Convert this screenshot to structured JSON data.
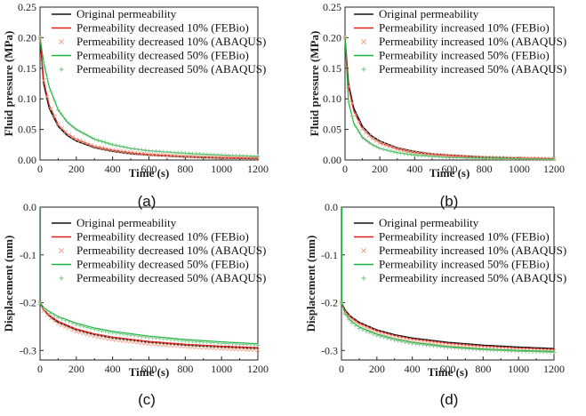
{
  "colors": {
    "original": "#111111",
    "fe10": "#e0201b",
    "ab10": "#f0a08a",
    "fe50": "#1fae3c",
    "ab50": "#6cc77d"
  },
  "chart_data": [
    {
      "type": "line",
      "panel_label": "(a)",
      "xlabel": "Time (s)",
      "ylabel": "Fluid pressure (MPa)",
      "xlim": [
        0,
        1200
      ],
      "ylim": [
        0,
        0.25
      ],
      "xticks": [
        0,
        200,
        400,
        600,
        800,
        1000,
        1200
      ],
      "yticks": [
        0.0,
        0.05,
        0.1,
        0.15,
        0.2,
        0.25
      ],
      "ytick_labels": [
        "0.00",
        "0.05",
        "0.10",
        "0.15",
        "0.20",
        "0.25"
      ],
      "x": [
        0,
        20,
        50,
        100,
        150,
        200,
        300,
        400,
        500,
        600,
        800,
        1000,
        1200
      ],
      "series": [
        {
          "name": "Original permeability",
          "key": "original",
          "style": "line",
          "values": [
            0.2,
            0.125,
            0.085,
            0.055,
            0.04,
            0.031,
            0.02,
            0.014,
            0.01,
            0.008,
            0.005,
            0.003,
            0.002
          ]
        },
        {
          "name": "Permeability decreased 10% (FEBio)",
          "key": "fe10",
          "style": "line",
          "values": [
            0.2,
            0.13,
            0.09,
            0.058,
            0.043,
            0.034,
            0.022,
            0.016,
            0.012,
            0.009,
            0.006,
            0.004,
            0.003
          ]
        },
        {
          "name": "Permeability decreased 10% (ABAQUS)",
          "key": "ab10",
          "style": "x",
          "values": [
            0.2,
            0.13,
            0.09,
            0.058,
            0.043,
            0.034,
            0.022,
            0.016,
            0.012,
            0.009,
            0.006,
            0.004,
            0.003
          ]
        },
        {
          "name": "Permeability decreased 50% (FEBio)",
          "key": "fe50",
          "style": "line",
          "values": [
            0.2,
            0.16,
            0.12,
            0.082,
            0.062,
            0.05,
            0.034,
            0.025,
            0.019,
            0.015,
            0.011,
            0.008,
            0.006
          ]
        },
        {
          "name": "Permeability decreased 50% (ABAQUS)",
          "key": "ab50",
          "style": "plus",
          "values": [
            0.2,
            0.16,
            0.12,
            0.082,
            0.062,
            0.05,
            0.034,
            0.025,
            0.019,
            0.015,
            0.011,
            0.008,
            0.006
          ]
        }
      ]
    },
    {
      "type": "line",
      "panel_label": "(b)",
      "xlabel": "Time (s)",
      "ylabel": "Fluid pressure (MPa)",
      "xlim": [
        0,
        1200
      ],
      "ylim": [
        0,
        0.25
      ],
      "xticks": [
        0,
        200,
        400,
        600,
        800,
        1000,
        1200
      ],
      "yticks": [
        0.0,
        0.05,
        0.1,
        0.15,
        0.2,
        0.25
      ],
      "ytick_labels": [
        "0.00",
        "0.05",
        "0.10",
        "0.15",
        "0.20",
        "0.25"
      ],
      "x": [
        0,
        20,
        50,
        100,
        150,
        200,
        300,
        400,
        500,
        600,
        800,
        1000,
        1200
      ],
      "series": [
        {
          "name": "Original permeability",
          "key": "original",
          "style": "line",
          "values": [
            0.2,
            0.125,
            0.085,
            0.055,
            0.04,
            0.031,
            0.02,
            0.014,
            0.01,
            0.008,
            0.005,
            0.003,
            0.002
          ]
        },
        {
          "name": "Permeability increased 10% (FEBio)",
          "key": "fe10",
          "style": "line",
          "values": [
            0.2,
            0.12,
            0.08,
            0.051,
            0.037,
            0.028,
            0.018,
            0.012,
            0.009,
            0.007,
            0.004,
            0.003,
            0.002
          ]
        },
        {
          "name": "Permeability increased 10% (ABAQUS)",
          "key": "ab10",
          "style": "x",
          "values": [
            0.2,
            0.12,
            0.08,
            0.051,
            0.037,
            0.028,
            0.018,
            0.012,
            0.009,
            0.007,
            0.004,
            0.003,
            0.002
          ]
        },
        {
          "name": "Permeability increased 50% (FEBio)",
          "key": "fe50",
          "style": "line",
          "values": [
            0.2,
            0.095,
            0.06,
            0.037,
            0.026,
            0.019,
            0.012,
            0.008,
            0.006,
            0.004,
            0.003,
            0.002,
            0.001
          ]
        },
        {
          "name": "Permeability increased 50% (ABAQUS)",
          "key": "ab50",
          "style": "plus",
          "values": [
            0.2,
            0.095,
            0.06,
            0.037,
            0.026,
            0.019,
            0.012,
            0.008,
            0.006,
            0.004,
            0.003,
            0.002,
            0.001
          ]
        }
      ]
    },
    {
      "type": "line",
      "panel_label": "(c)",
      "xlabel": "Time (s)",
      "ylabel": "Displacement (mm)",
      "xlim": [
        0,
        1200
      ],
      "ylim": [
        -0.32,
        0.0
      ],
      "xticks": [
        0,
        200,
        400,
        600,
        800,
        1000,
        1200
      ],
      "yticks": [
        -0.3,
        -0.2,
        -0.1,
        0.0
      ],
      "ytick_labels": [
        "-0.3",
        "-0.2",
        "-0.1",
        "0.0"
      ],
      "x": [
        0,
        20,
        50,
        100,
        200,
        300,
        400,
        600,
        800,
        1000,
        1200
      ],
      "series": [
        {
          "name": "Original permeability",
          "key": "original",
          "style": "line",
          "values": [
            -0.2,
            -0.215,
            -0.228,
            -0.241,
            -0.257,
            -0.267,
            -0.274,
            -0.283,
            -0.289,
            -0.293,
            -0.296
          ]
        },
        {
          "name": "Permeability decreased 10% (FEBio)",
          "key": "fe10",
          "style": "line",
          "values": [
            -0.2,
            -0.214,
            -0.226,
            -0.239,
            -0.255,
            -0.265,
            -0.272,
            -0.281,
            -0.287,
            -0.291,
            -0.294
          ]
        },
        {
          "name": "Permeability decreased 10% (ABAQUS)",
          "key": "ab10",
          "style": "x",
          "values": [
            -0.2,
            -0.217,
            -0.23,
            -0.244,
            -0.26,
            -0.27,
            -0.277,
            -0.286,
            -0.292,
            -0.296,
            -0.299
          ]
        },
        {
          "name": "Permeability decreased 50% (FEBio)",
          "key": "fe50",
          "style": "line",
          "values": [
            -0.2,
            -0.21,
            -0.218,
            -0.229,
            -0.243,
            -0.253,
            -0.26,
            -0.27,
            -0.277,
            -0.282,
            -0.286
          ]
        },
        {
          "name": "Permeability decreased 50% (ABAQUS)",
          "key": "ab50",
          "style": "plus",
          "values": [
            -0.2,
            -0.211,
            -0.22,
            -0.231,
            -0.246,
            -0.256,
            -0.263,
            -0.273,
            -0.28,
            -0.285,
            -0.289
          ]
        }
      ]
    },
    {
      "type": "line",
      "panel_label": "(d)",
      "xlabel": "Time (s)",
      "ylabel": "Displacement (mm)",
      "xlim": [
        0,
        1200
      ],
      "ylim": [
        -0.32,
        0.0
      ],
      "xticks": [
        0,
        200,
        400,
        600,
        800,
        1000,
        1200
      ],
      "yticks": [
        -0.3,
        -0.2,
        -0.1,
        0.0
      ],
      "ytick_labels": [
        "-0.3",
        "-0.2",
        "-0.1",
        "0.0"
      ],
      "x": [
        0,
        20,
        50,
        100,
        200,
        300,
        400,
        600,
        800,
        1000,
        1200
      ],
      "series": [
        {
          "name": "Original permeability",
          "key": "original",
          "style": "line",
          "values": [
            -0.2,
            -0.215,
            -0.228,
            -0.241,
            -0.257,
            -0.267,
            -0.274,
            -0.283,
            -0.289,
            -0.293,
            -0.296
          ]
        },
        {
          "name": "Permeability increased 10% (FEBio)",
          "key": "fe10",
          "style": "line",
          "values": [
            -0.2,
            -0.217,
            -0.23,
            -0.243,
            -0.259,
            -0.269,
            -0.276,
            -0.285,
            -0.291,
            -0.295,
            -0.298
          ]
        },
        {
          "name": "Permeability increased 10% (ABAQUS)",
          "key": "ab10",
          "style": "x",
          "values": [
            -0.2,
            -0.219,
            -0.233,
            -0.246,
            -0.262,
            -0.272,
            -0.279,
            -0.288,
            -0.294,
            -0.298,
            -0.301
          ]
        },
        {
          "name": "Permeability increased 50% (FEBio)",
          "key": "fe50",
          "style": "line",
          "values": [
            -0.2,
            -0.222,
            -0.237,
            -0.251,
            -0.266,
            -0.276,
            -0.283,
            -0.292,
            -0.297,
            -0.3,
            -0.302
          ]
        },
        {
          "name": "Permeability increased 50% (ABAQUS)",
          "key": "ab50",
          "style": "plus",
          "values": [
            -0.2,
            -0.224,
            -0.24,
            -0.254,
            -0.269,
            -0.279,
            -0.286,
            -0.294,
            -0.299,
            -0.302,
            -0.304
          ]
        }
      ]
    }
  ]
}
